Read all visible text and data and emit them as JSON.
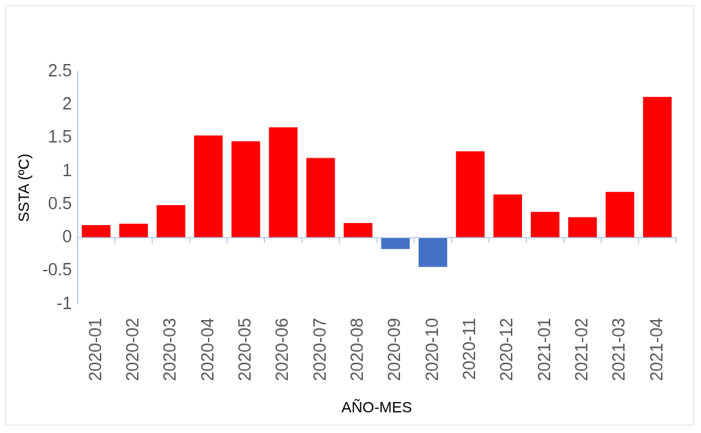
{
  "chart_data": {
    "type": "bar",
    "xlabel": "AÑO-MES",
    "ylabel": "SSTA (ºC)",
    "categories": [
      "2020-01",
      "2020-02",
      "2020-03",
      "2020-04",
      "2020-05",
      "2020-06",
      "2020-07",
      "2020-08",
      "2020-09",
      "2020-10",
      "2020-11",
      "2020-12",
      "2021-01",
      "2021-02",
      "2021-03",
      "2021-04"
    ],
    "values": [
      0.19,
      0.21,
      0.49,
      1.54,
      1.45,
      1.66,
      1.2,
      0.22,
      -0.17,
      -0.44,
      1.3,
      0.65,
      0.39,
      0.31,
      0.69,
      2.12
    ],
    "colors": [
      "#ff0000",
      "#ff0000",
      "#ff0000",
      "#ff0000",
      "#ff0000",
      "#ff0000",
      "#ff0000",
      "#ff0000",
      "#4472c4",
      "#4472c4",
      "#ff0000",
      "#ff0000",
      "#ff0000",
      "#ff0000",
      "#ff0000",
      "#ff0000"
    ],
    "ylim": [
      -1,
      2.5
    ],
    "yticks": [
      -1,
      -0.5,
      0,
      0.5,
      1,
      1.5,
      2,
      2.5
    ],
    "grid": false,
    "legend": false,
    "ref_lines": [
      {
        "axis": "y",
        "value": 0,
        "color": "#b4c7e7"
      }
    ]
  }
}
